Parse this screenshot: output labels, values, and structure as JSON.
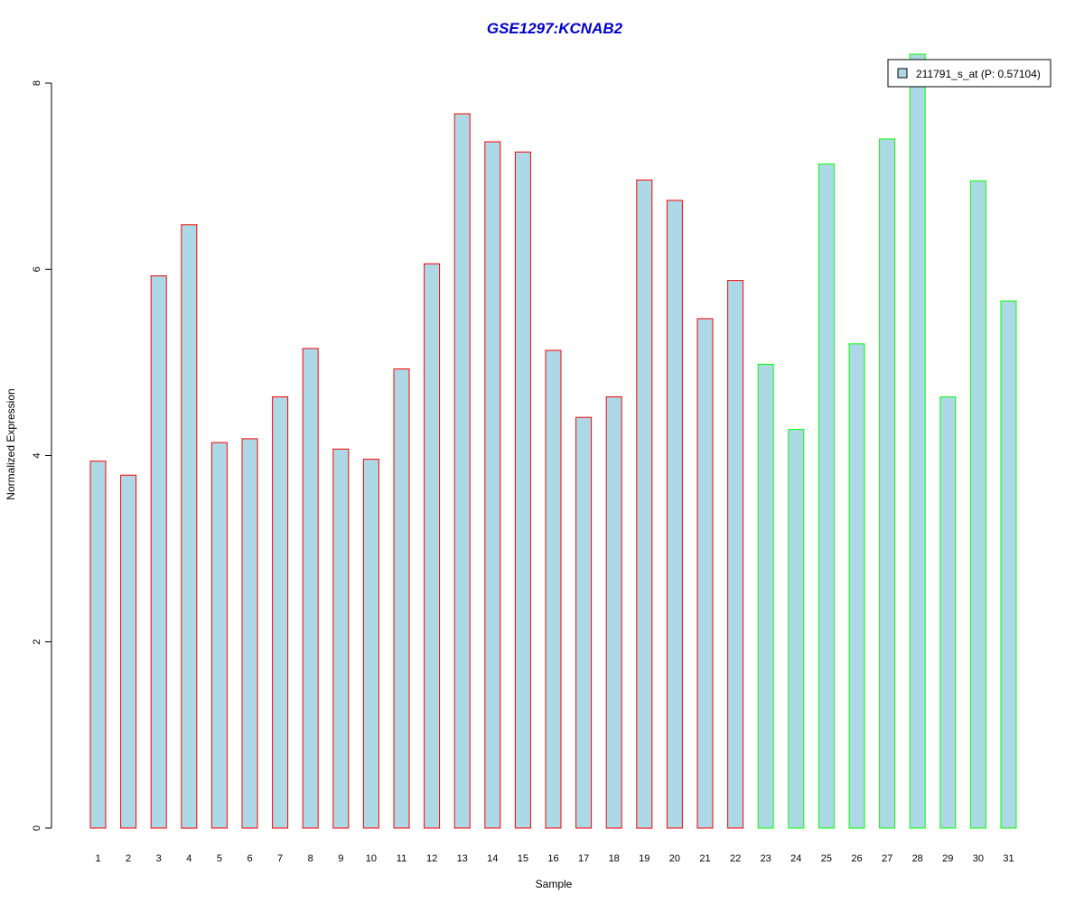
{
  "chart_data": {
    "type": "bar",
    "title": "GSE1297:KCNAB2",
    "xlabel": "Sample",
    "ylabel": "Normalized Expression",
    "ylim": [
      0,
      8
    ],
    "y_ticks": [
      "0",
      "2",
      "4",
      "6",
      "8"
    ],
    "grid": false,
    "legend_position": "top-right",
    "categories": [
      "1",
      "2",
      "3",
      "4",
      "5",
      "6",
      "7",
      "8",
      "9",
      "10",
      "11",
      "12",
      "13",
      "14",
      "15",
      "16",
      "17",
      "18",
      "19",
      "20",
      "21",
      "22",
      "23",
      "24",
      "25",
      "26",
      "27",
      "28",
      "29",
      "30",
      "31"
    ],
    "series": [
      {
        "name": "211791_s_at (P: 0.57104)",
        "values": [
          3.94,
          3.79,
          5.93,
          6.48,
          4.14,
          4.18,
          4.63,
          5.15,
          4.07,
          3.96,
          4.93,
          6.06,
          7.67,
          7.37,
          7.26,
          5.13,
          4.41,
          4.63,
          6.96,
          6.74,
          5.47,
          5.88,
          4.98,
          4.28,
          7.13,
          5.2,
          7.4,
          8.31,
          4.63,
          6.95,
          5.66
        ]
      }
    ],
    "groups": [
      "red",
      "red",
      "red",
      "red",
      "red",
      "red",
      "red",
      "red",
      "red",
      "red",
      "red",
      "red",
      "red",
      "red",
      "red",
      "red",
      "red",
      "red",
      "red",
      "red",
      "red",
      "red",
      "green",
      "green",
      "green",
      "green",
      "green",
      "green",
      "green",
      "green",
      "green"
    ],
    "colors": {
      "fill": "#add8e6",
      "border_red": "#ff0000",
      "border_green": "#00ff00",
      "title": "#0000cc"
    }
  }
}
